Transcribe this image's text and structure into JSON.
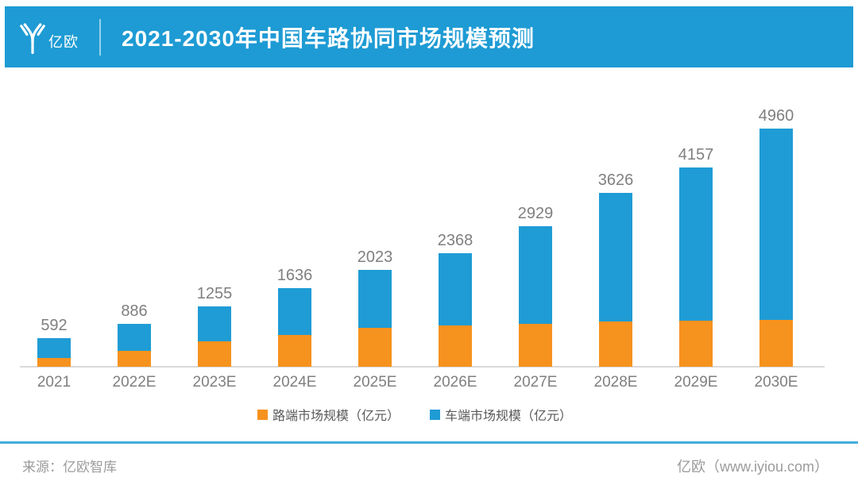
{
  "header": {
    "logo_text": "亿欧",
    "title": "2021-2030年中国车路协同市场规模预测"
  },
  "chart_data": {
    "type": "bar",
    "stacked": true,
    "title": "2021-2030年中国车路协同市场规模预测",
    "unit": "亿元",
    "categories": [
      "2021",
      "2022E",
      "2023E",
      "2024E",
      "2025E",
      "2026E",
      "2027E",
      "2028E",
      "2029E",
      "2030E"
    ],
    "series": [
      {
        "name": "路端市场规模（亿元）",
        "color": "#F6921E",
        "values": [
          190,
          330,
          530,
          660,
          810,
          860,
          890,
          935,
          960,
          980
        ]
      },
      {
        "name": "车端市场规模（亿元）",
        "color": "#1F9CD5",
        "values": [
          402,
          556,
          725,
          976,
          1213,
          1508,
          2039,
          2691,
          3197,
          3980
        ]
      }
    ],
    "totals": [
      592,
      886,
      1255,
      1636,
      2023,
      2368,
      2929,
      3626,
      4157,
      4960
    ],
    "value_labels": [
      "592",
      "886",
      "1255",
      "1636",
      "2023",
      "2368",
      "2929",
      "3626",
      "4157",
      "4960"
    ],
    "ylim": [
      0,
      5000
    ],
    "grid": false,
    "legend_position": "bottom"
  },
  "legend": {
    "items": [
      {
        "label": "路端市场规模（亿元）",
        "color": "#F6921E"
      },
      {
        "label": "车端市场规模（亿元）",
        "color": "#1F9CD5"
      }
    ]
  },
  "footer": {
    "source": "来源：亿欧智库",
    "brand": "亿欧（www.iyiou.com）"
  },
  "colors": {
    "header_background": "#1E9BD4",
    "bar_blue": "#1F9CD5",
    "bar_orange": "#F6921E",
    "value_label": "#7F7F7F",
    "axis_label": "#7F7F7F",
    "legend_text": "#595959",
    "baseline": "#D9D9D9",
    "footer_line": "#45ACDB",
    "footer_text": "#9B9B9B"
  }
}
